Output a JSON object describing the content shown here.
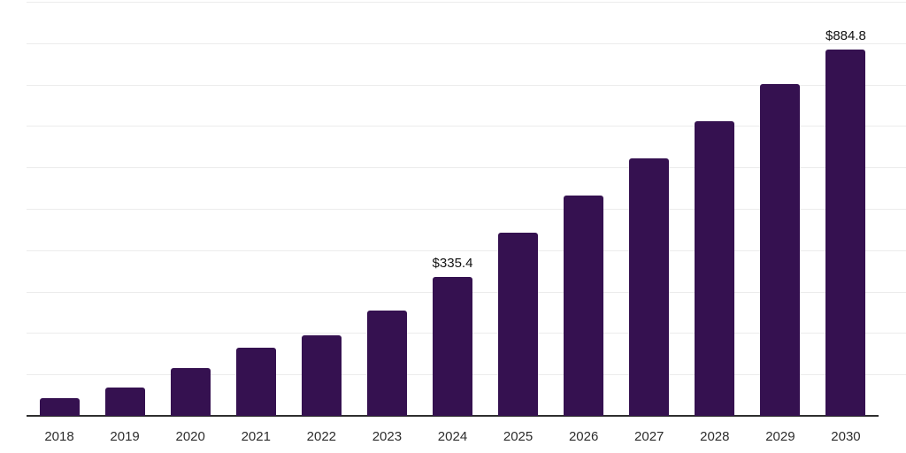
{
  "chart_data": {
    "type": "bar",
    "title": "",
    "xlabel": "",
    "ylabel": "",
    "categories": [
      "2018",
      "2019",
      "2020",
      "2021",
      "2022",
      "2023",
      "2024",
      "2025",
      "2026",
      "2027",
      "2028",
      "2029",
      "2030"
    ],
    "values": [
      43,
      68,
      116,
      164,
      195,
      255,
      335.4,
      443,
      531,
      621,
      712,
      801,
      884.8
    ],
    "value_labels": {
      "2024": "$335.4",
      "2030": "$884.8"
    },
    "ylim": [
      0,
      1000
    ],
    "grid_step": 100,
    "grid": "horizontal",
    "legend_position": "none",
    "y_tick_labels_visible": false,
    "colors": {
      "bar": "#351150",
      "axis": "#2f2f2f",
      "gridline": "#ececec",
      "tick_label": "#2d2d2d",
      "value_label": "#111111",
      "background": "#ffffff"
    }
  }
}
